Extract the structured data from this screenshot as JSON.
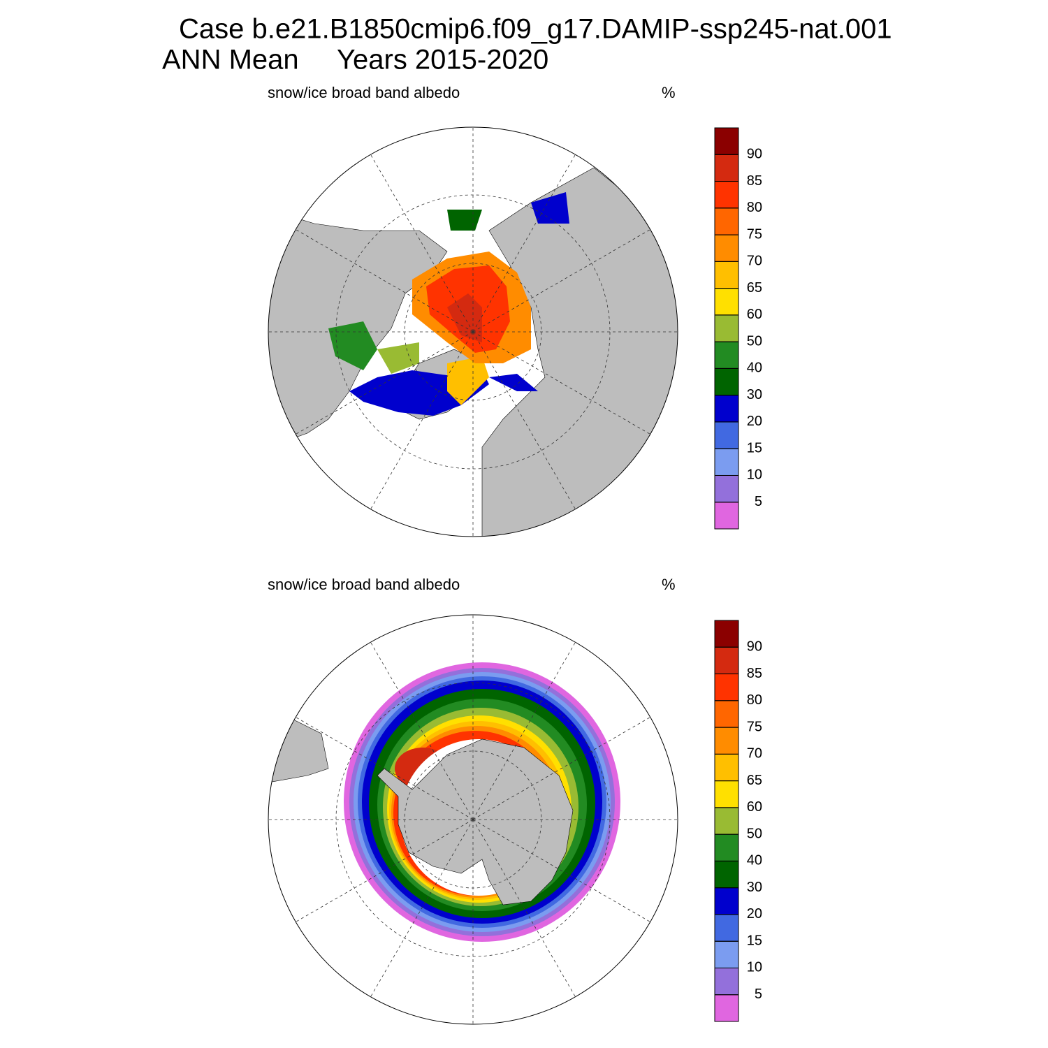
{
  "header": {
    "case": "Case b.e21.B1850cmip6.f09_g17.DAMIP-ssp245-nat.001",
    "season": "ANN Mean",
    "years": "Years 2015-2020"
  },
  "panels": [
    {
      "title": "snow/ice broad band albedo",
      "units": "%",
      "colorbar": {
        "levels": [
          5,
          10,
          15,
          20,
          30,
          40,
          50,
          60,
          65,
          70,
          75,
          80,
          85,
          90
        ],
        "colors": [
          "#e066e0",
          "#9370db",
          "#7b9cf0",
          "#4169e1",
          "#0000cd",
          "#006400",
          "#228b22",
          "#99bb33",
          "#ffe000",
          "#ffbf00",
          "#ff8c00",
          "#ff6600",
          "#ff3300",
          "#d42a10",
          "#8b0000"
        ]
      }
    },
    {
      "title": "snow/ice broad band albedo",
      "units": "%",
      "colorbar": {
        "levels": [
          5,
          10,
          15,
          20,
          30,
          40,
          50,
          60,
          65,
          70,
          75,
          80,
          85,
          90
        ],
        "colors": [
          "#e066e0",
          "#9370db",
          "#7b9cf0",
          "#4169e1",
          "#0000cd",
          "#006400",
          "#228b22",
          "#99bb33",
          "#ffe000",
          "#ffbf00",
          "#ff8c00",
          "#ff6600",
          "#ff3300",
          "#d42a10",
          "#8b0000"
        ]
      }
    }
  ]
}
